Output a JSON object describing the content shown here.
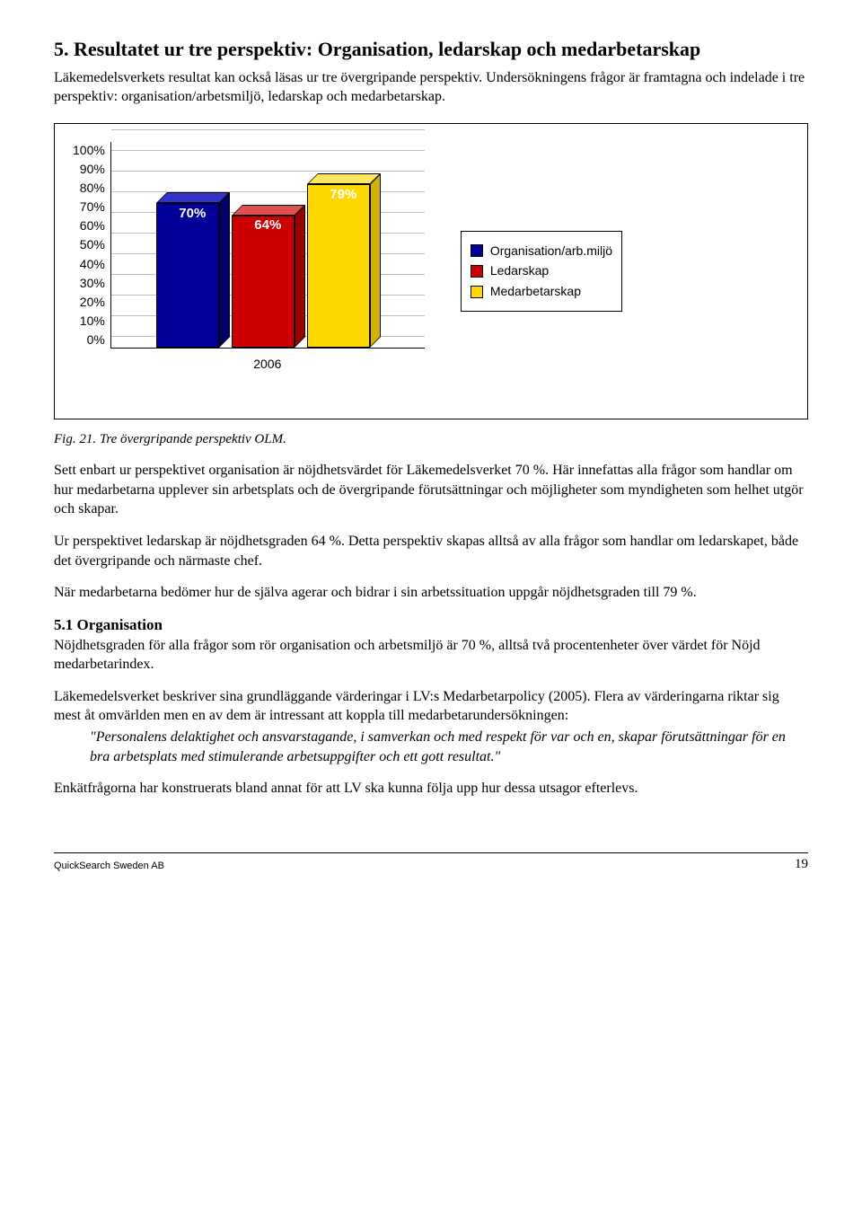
{
  "section": {
    "title": "5. Resultatet ur tre perspektiv: Organisation, ledarskap och medarbetarskap",
    "intro": "Läkemedelsverkets resultat kan också läsas ur tre övergripande perspektiv. Undersökningens frågor är framtagna och indelade i tre perspektiv: organisation/arbetsmiljö, ledarskap och medarbetarskap."
  },
  "chart": {
    "type": "bar",
    "yticks": [
      "100%",
      "90%",
      "80%",
      "70%",
      "60%",
      "50%",
      "40%",
      "30%",
      "20%",
      "10%",
      "0%"
    ],
    "ylim": [
      0,
      100
    ],
    "xaxis_label": "2006",
    "bars": [
      {
        "value": 70,
        "label": "70%",
        "front": "#000099",
        "top": "#3333cc",
        "side": "#000066"
      },
      {
        "value": 64,
        "label": "64%",
        "front": "#cc0000",
        "top": "#e05050",
        "side": "#990000"
      },
      {
        "value": 79,
        "label": "79%",
        "front": "#ffd800",
        "top": "#ffe860",
        "side": "#d4b200"
      }
    ],
    "grid_color": "#bfbfbf",
    "label_color": "#ffffff",
    "label_fontsize": 15,
    "tick_fontsize": 14,
    "legend": [
      {
        "label": "Organisation/arb.miljö",
        "color": "#000099"
      },
      {
        "label": "Ledarskap",
        "color": "#cc0000"
      },
      {
        "label": "Medarbetarskap",
        "color": "#ffd800"
      }
    ],
    "caption": "Fig. 21. Tre övergripande perspektiv OLM."
  },
  "body": {
    "p1": "Sett enbart ur perspektivet organisation är nöjdhetsvärdet för Läkemedelsverket 70 %. Här innefattas alla frågor som handlar om hur medarbetarna upplever sin arbetsplats och de övergripande förutsättningar och möjligheter som myndigheten som helhet utgör och skapar.",
    "p2": "Ur perspektivet ledarskap är nöjdhetsgraden 64 %. Detta perspektiv skapas alltså av alla frågor som handlar om ledarskapet, både det övergripande och närmaste chef.",
    "p3": "När medarbetarna bedömer hur de själva agerar och bidrar i sin arbetssituation uppgår nöjdhetsgraden till 79 %.",
    "sub_heading": "5.1 Organisation",
    "p4": "Nöjdhetsgraden för alla frågor som rör organisation och arbetsmiljö är 70 %, alltså två procentenheter över värdet för Nöjd medarbetarindex.",
    "p5": "Läkemedelsverket beskriver sina grundläggande värderingar i LV:s Medarbetarpolicy (2005). Flera av värderingarna riktar sig mest åt omvärlden men en av dem är intressant att koppla till medarbetarundersökningen:",
    "quote": "\"Personalens delaktighet och ansvarstagande, i samverkan och med respekt för var och en, skapar förutsättningar för en bra arbetsplats med stimulerande arbetsuppgifter och ett gott resultat.\"",
    "p6": "Enkätfrågorna har konstruerats bland annat för att LV ska kunna följa upp hur dessa utsagor efterlevs."
  },
  "footer": {
    "left": "QuickSearch Sweden AB",
    "page": "19"
  }
}
